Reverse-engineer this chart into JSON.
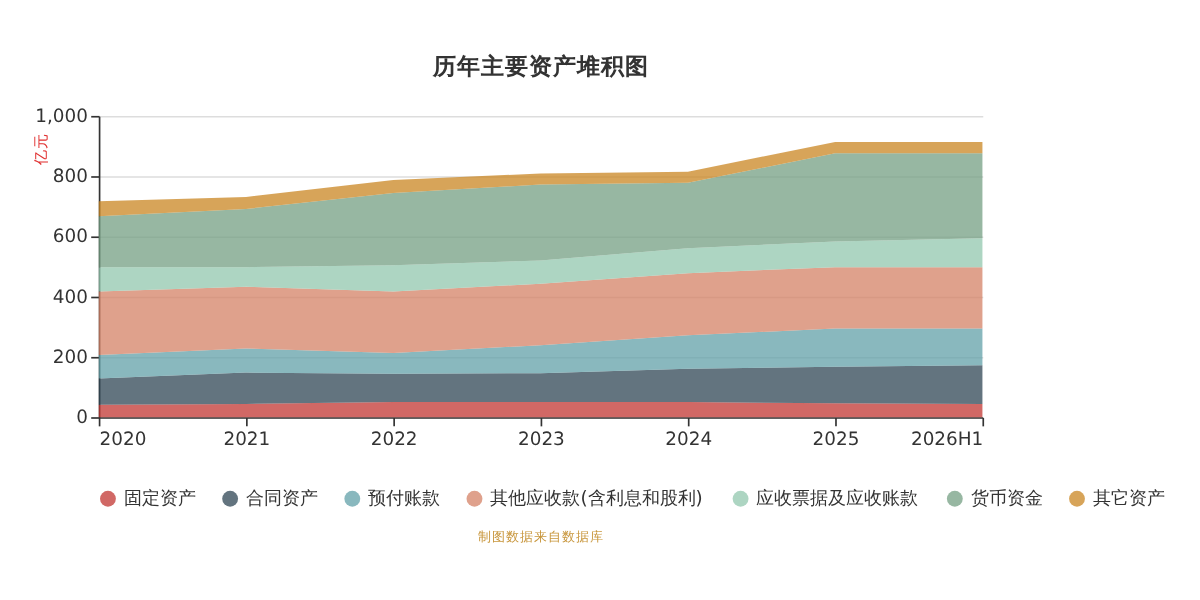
{
  "chart_data": {
    "type": "area",
    "title": "历年主要资产堆积图",
    "ylabel": "亿元",
    "categories": [
      "2020",
      "2021",
      "2022",
      "2023",
      "2024",
      "2025",
      "2026H1"
    ],
    "stacked": true,
    "ylim": [
      0,
      1000
    ],
    "yticks": [
      0,
      200,
      400,
      600,
      800,
      {
        "value": 1000,
        "label": "1,000"
      }
    ],
    "grid": "y",
    "legend": "bottom",
    "series": [
      {
        "name": "固定资产",
        "color": "#c23531",
        "values": [
          41,
          44,
          50,
          50,
          50,
          46,
          44
        ]
      },
      {
        "name": "合同资产",
        "color": "#2f4554",
        "values": [
          87,
          104,
          94,
          96,
          111,
          121,
          128
        ]
      },
      {
        "name": "预付账款",
        "color": "#61a0a8",
        "values": [
          78,
          80,
          69,
          93,
          111,
          127,
          122
        ]
      },
      {
        "name": "其他应收款(含利息和股利)",
        "color": "#d48265",
        "values": [
          211,
          205,
          204,
          204,
          206,
          204,
          204
        ]
      },
      {
        "name": "应收票据及应收账款",
        "color": "#91c7ae",
        "values": [
          81,
          65,
          87,
          77,
          83,
          85,
          96
        ]
      },
      {
        "name": "货币资金",
        "color": "#749f83",
        "values": [
          169,
          193,
          240,
          252,
          217,
          293,
          282
        ]
      },
      {
        "name": "其它资产",
        "color": "#ca8622",
        "values": [
          50,
          40,
          43,
          37,
          37,
          37,
          37
        ]
      }
    ],
    "annotations": [
      "制图数据来自数据库"
    ]
  }
}
